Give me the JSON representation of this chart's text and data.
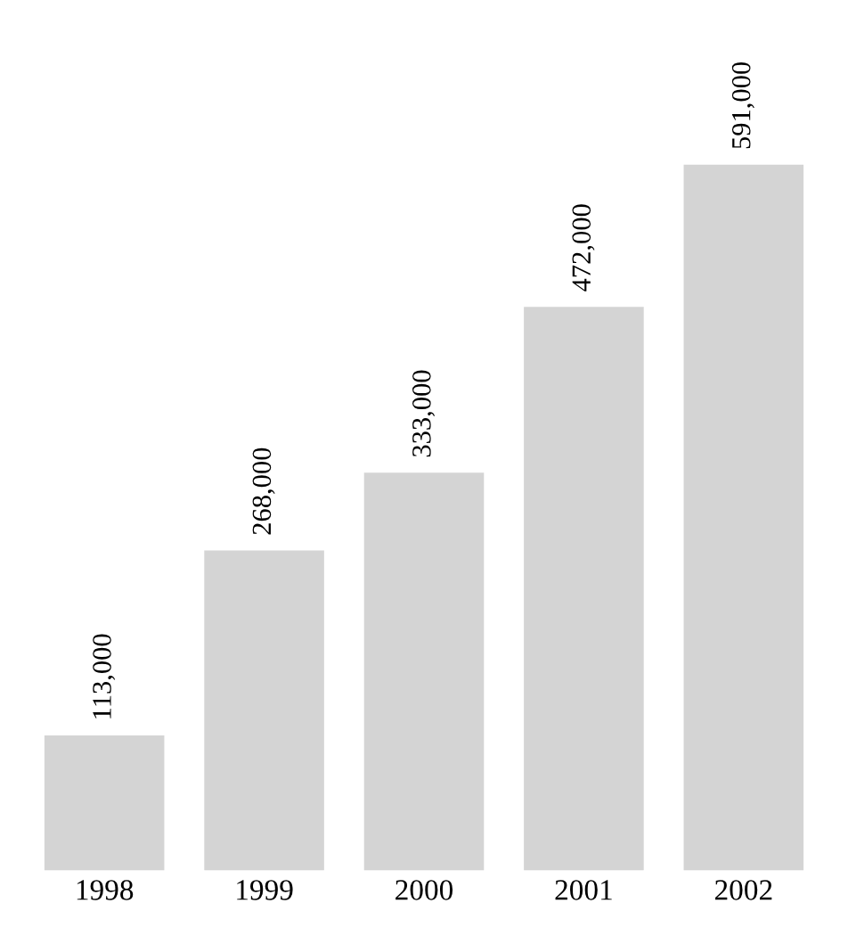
{
  "chart_data": {
    "type": "bar",
    "categories": [
      "1998",
      "1999",
      "2000",
      "2001",
      "2002"
    ],
    "values": [
      113000,
      268000,
      333000,
      472000,
      591000
    ],
    "value_labels": [
      "113,000",
      "268,000",
      "333,000",
      "472,000",
      "591,000"
    ],
    "color": "#d4d4d4",
    "grid": false,
    "legend": false
  }
}
